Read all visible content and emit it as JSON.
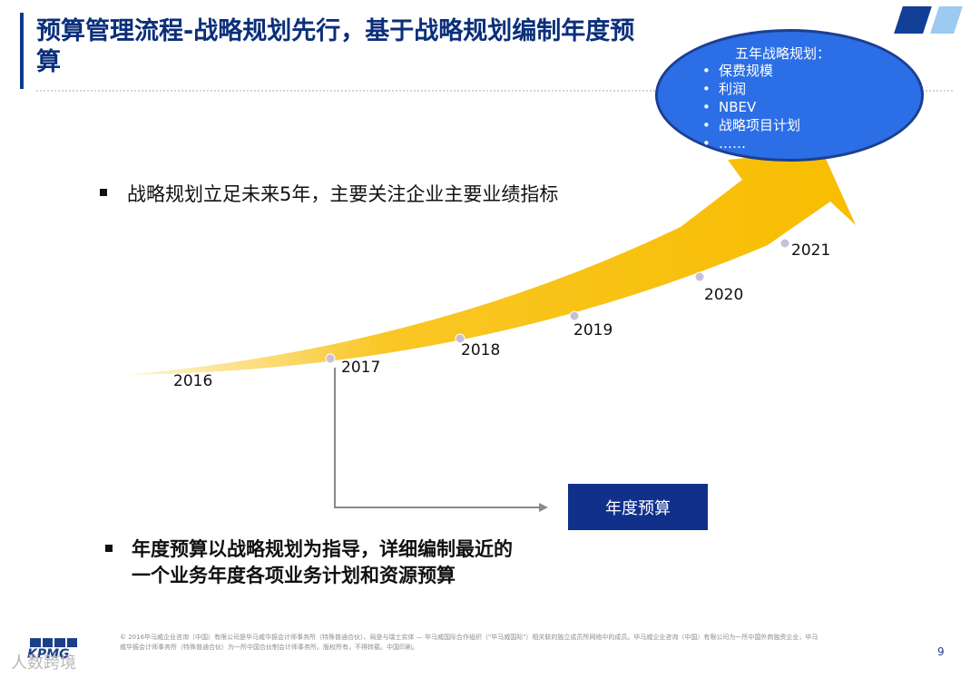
{
  "header": {
    "title": "预算管理流程-战略规划先行，基于战略规划编制年度预算"
  },
  "strategy_ellipse": {
    "title": "五年战略规划：",
    "items": [
      "保费规模",
      "利润",
      "NBEV",
      "战略项目计划",
      "……"
    ]
  },
  "bullets": {
    "strategy": "战略规划立足未来5年，主要关注企业主要业绩指标",
    "budget": "年度预算以战略规划为指导，详细编制最近的一个业务年度各项业务计划和资源预算"
  },
  "timeline": {
    "years": [
      "2016",
      "2017",
      "2018",
      "2019",
      "2020",
      "2021"
    ],
    "arrow_color": "#f8bd00"
  },
  "budget_box": {
    "label": "年度预算"
  },
  "footer": {
    "legal": "© 2016毕马威企业咨询（中国）有限公司是毕马威华振会计师事务所（特殊普通合伙）、局是与瑞士实体 — 毕马威国际合作组织（\"毕马威国际\"）相关联的独立成员所网络中的成员。毕马威企业咨询（中国）有限公司为一所中国外商独资企业，毕马威华振会计师事务所（特殊普通合伙）为一所中国合伙制会计师事务所。版权所有，不得转载。中国印刷。",
    "logo": "KPMG",
    "watermark": "人数跨境",
    "page_number": "9"
  },
  "colors": {
    "title": "#0b2f7a",
    "ellipse_fill": "#2b6ee6",
    "box_fill": "#10308a",
    "arrow": "#f8bd00"
  }
}
